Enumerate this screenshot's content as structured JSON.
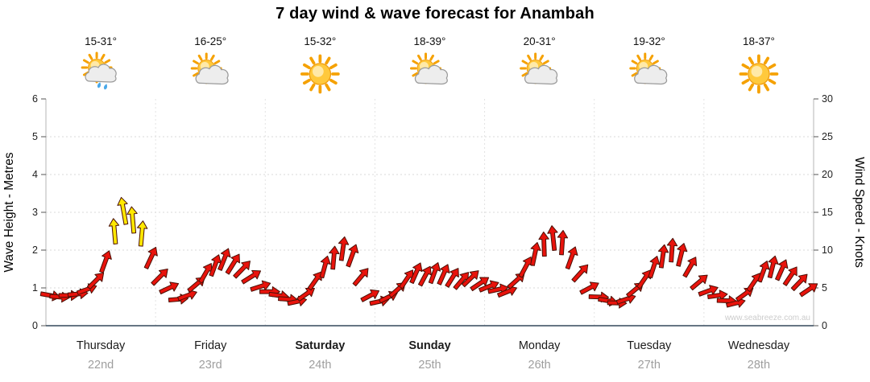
{
  "title": "7 day wind & wave forecast for Anambah",
  "watermark": "www.seabreeze.com.au",
  "days": [
    {
      "name": "Thursday",
      "date": "22nd",
      "temp": "15-31°",
      "icon": "sun-cloud-rain",
      "bold": false
    },
    {
      "name": "Friday",
      "date": "23rd",
      "temp": "16-25°",
      "icon": "sun-cloud",
      "bold": false
    },
    {
      "name": "Saturday",
      "date": "24th",
      "temp": "15-32°",
      "icon": "sun",
      "bold": true
    },
    {
      "name": "Sunday",
      "date": "25th",
      "temp": "18-39°",
      "icon": "sun-cloud",
      "bold": true
    },
    {
      "name": "Monday",
      "date": "26th",
      "temp": "20-31°",
      "icon": "sun-cloud",
      "bold": false
    },
    {
      "name": "Tuesday",
      "date": "27th",
      "temp": "19-32°",
      "icon": "sun-cloud",
      "bold": false
    },
    {
      "name": "Wednesday",
      "date": "28th",
      "temp": "18-37°",
      "icon": "sun",
      "bold": false
    }
  ],
  "axes": {
    "left_label": "Wave Height - Metres",
    "right_label": "Wind Speed - Knots",
    "left_ticks": [
      0,
      1,
      2,
      3,
      4,
      5,
      6
    ],
    "right_ticks": [
      0,
      5,
      10,
      15,
      20,
      25,
      30
    ]
  },
  "colors": {
    "arrow_red": "#e8130c",
    "arrow_yellow": "#ffe800",
    "arrow_outline": "#4a1006",
    "grid": "#d8d8d8",
    "axis": "#35495c",
    "side_axis": "#b5b5b5",
    "tick_text": "#222222",
    "day_text": "#1c1c1c",
    "date_text": "#9e9e9e",
    "watermark_text": "#cccccc"
  },
  "chart_data": {
    "type": "scatter",
    "subtype": "wind-arrows",
    "title": "7 day wind & wave forecast for Anambah",
    "categories": [
      "Thursday 22nd",
      "Friday 23rd",
      "Saturday 24th",
      "Sunday 25th",
      "Monday 26th",
      "Tuesday 27th",
      "Wednesday 28th"
    ],
    "points_per_day": 12,
    "step_hours": 2,
    "ylabel_left": "Wave Height - Metres",
    "ylabel_right": "Wind Speed - Knots",
    "wave_axis_range": [
      0,
      6
    ],
    "wind_axis_range": [
      0,
      30
    ],
    "grid": "dotted",
    "yellow_threshold_knots": 12,
    "wind_knots": [
      4.0,
      3.8,
      4.0,
      4.2,
      4.8,
      6.0,
      8.5,
      12.5,
      15.2,
      14.0,
      12.2,
      9.0,
      6.5,
      5.0,
      3.5,
      4.0,
      5.5,
      7.0,
      8.0,
      8.8,
      8.2,
      7.5,
      6.5,
      5.2,
      4.5,
      4.0,
      3.5,
      3.2,
      4.2,
      6.0,
      7.8,
      9.0,
      10.2,
      9.3,
      6.5,
      4.0,
      3.2,
      3.8,
      4.8,
      6.2,
      7.0,
      6.6,
      7.0,
      6.8,
      6.4,
      6.0,
      6.3,
      5.6,
      5.2,
      4.8,
      4.5,
      6.0,
      7.8,
      9.5,
      10.8,
      11.6,
      11.0,
      9.0,
      7.0,
      5.0,
      3.8,
      3.3,
      3.0,
      3.5,
      4.8,
      6.2,
      7.8,
      9.2,
      10.0,
      9.4,
      7.8,
      5.8,
      4.6,
      4.0,
      3.3,
      3.0,
      4.2,
      5.8,
      7.2,
      7.8,
      7.4,
      6.6,
      5.8,
      4.8
    ],
    "wind_dir_deg": [
      10,
      5,
      0,
      -5,
      -20,
      -45,
      -70,
      -95,
      -100,
      -95,
      -85,
      -65,
      -45,
      -25,
      -5,
      -20,
      -40,
      -60,
      -70,
      -68,
      -58,
      -46,
      -32,
      -18,
      0,
      8,
      4,
      -12,
      -35,
      -55,
      -75,
      -85,
      -82,
      -70,
      -50,
      -28,
      -12,
      -26,
      -42,
      -56,
      -66,
      -62,
      -70,
      -66,
      -58,
      -50,
      -44,
      -34,
      -22,
      -12,
      -22,
      -42,
      -62,
      -78,
      -92,
      -96,
      -86,
      -70,
      -48,
      -28,
      2,
      10,
      2,
      -18,
      -40,
      -56,
      -72,
      -82,
      -86,
      -76,
      -60,
      -40,
      -20,
      -8,
      2,
      -14,
      -36,
      -56,
      -70,
      -76,
      -66,
      -56,
      -46,
      -34
    ]
  }
}
